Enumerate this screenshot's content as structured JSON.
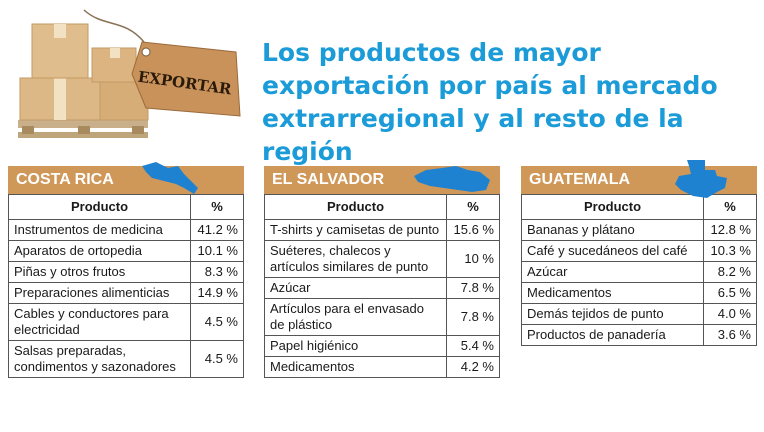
{
  "title": "Los productos de mayor exportación por país al mercado extrarregional y al resto de la región",
  "hero": {
    "tag_label": "EXPORTAR"
  },
  "colors": {
    "title": "#1b9bd7",
    "band": "#d09858",
    "map": "#1e82d1"
  },
  "icons": [
    "boxes-pallet-image",
    "price-tag-icon",
    "country-map-icon"
  ],
  "panels": [
    {
      "country": "COSTA RICA",
      "col_product": "Producto",
      "col_pct": "%",
      "rows": [
        {
          "product": "Instrumentos de medicina",
          "pct": "41.2 %"
        },
        {
          "product": "Aparatos de ortopedia",
          "pct": "10.1 %"
        },
        {
          "product": "Piñas y otros frutos",
          "pct": "8.3 %"
        },
        {
          "product": "Preparaciones alimenticias",
          "pct": "14.9 %"
        },
        {
          "product": "Cables y conductores para electricidad",
          "pct": "4.5 %"
        },
        {
          "product": "Salsas preparadas, condimentos y sazonadores",
          "pct": "4.5 %"
        }
      ]
    },
    {
      "country": "EL SALVADOR",
      "col_product": "Producto",
      "col_pct": "%",
      "rows": [
        {
          "product": "T-shirts y camisetas de punto",
          "pct": "15.6 %"
        },
        {
          "product": "Suéteres, chalecos y artículos similares de punto",
          "pct": "10 %"
        },
        {
          "product": "Azúcar",
          "pct": "7.8 %"
        },
        {
          "product": "Artículos para el envasado de plástico",
          "pct": "7.8 %"
        },
        {
          "product": "Papel higiénico",
          "pct": "5.4 %"
        },
        {
          "product": "Medicamentos",
          "pct": "4.2 %"
        }
      ]
    },
    {
      "country": "GUATEMALA",
      "col_product": "Producto",
      "col_pct": "%",
      "rows": [
        {
          "product": "Bananas y plátano",
          "pct": "12.8 %"
        },
        {
          "product": "Café y sucedáneos del café",
          "pct": "10.3 %"
        },
        {
          "product": "Azúcar",
          "pct": "8.2 %"
        },
        {
          "product": "Medicamentos",
          "pct": "6.5 %"
        },
        {
          "product": "Demás tejidos de punto",
          "pct": "4.0 %"
        },
        {
          "product": "Productos de panadería",
          "pct": "3.6 %"
        }
      ]
    }
  ]
}
